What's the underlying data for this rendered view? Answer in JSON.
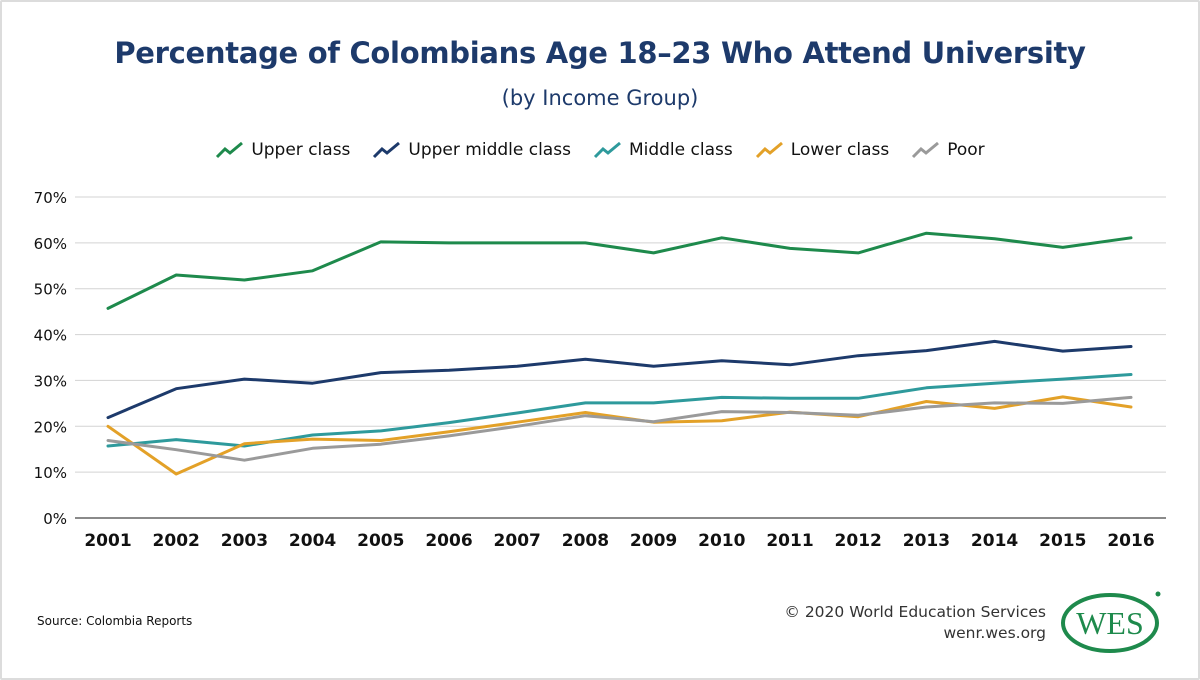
{
  "title": "Percentage of Colombians Age 18–23 Who Attend University",
  "subtitle": "(by Income Group)",
  "footer": {
    "source": "Source: Colombia Reports",
    "copyright": "© 2020 World Education Services",
    "website": "wenr.wes.org",
    "logo_text": "WES",
    "logo_color": "#1e8a4c"
  },
  "chart_data": {
    "type": "line",
    "title": "Percentage of Colombians Age 18–23 Who Attend University",
    "subtitle": "(by Income Group)",
    "xlabel": "",
    "ylabel": "",
    "x": [
      "2001",
      "2002",
      "2003",
      "2004",
      "2005",
      "2006",
      "2007",
      "2008",
      "2009",
      "2010",
      "2011",
      "2012",
      "2013",
      "2014",
      "2015",
      "2016"
    ],
    "ylim": [
      0,
      70
    ],
    "yticks": [
      0,
      10,
      20,
      30,
      40,
      50,
      60,
      70
    ],
    "ytick_labels": [
      "0%",
      "10%",
      "20%",
      "30%",
      "40%",
      "50%",
      "60%",
      "70%"
    ],
    "grid": true,
    "legend_position": "top-center",
    "series": [
      {
        "name": "Upper class",
        "color": "#1e8a4c",
        "values": [
          45.7,
          53.0,
          51.9,
          53.9,
          60.2,
          60.0,
          60.0,
          60.0,
          57.8,
          61.1,
          58.8,
          57.8,
          62.1,
          60.9,
          59.0,
          61.1
        ]
      },
      {
        "name": "Upper middle class",
        "color": "#1d3a6b",
        "values": [
          21.9,
          28.2,
          30.3,
          29.4,
          31.7,
          32.2,
          33.1,
          34.6,
          33.1,
          34.3,
          33.4,
          35.4,
          36.5,
          38.5,
          36.4,
          37.4
        ]
      },
      {
        "name": "Middle class",
        "color": "#2e9a9c",
        "values": [
          15.7,
          17.1,
          15.7,
          18.1,
          19.0,
          20.8,
          22.9,
          25.1,
          25.1,
          26.3,
          26.1,
          26.1,
          28.4,
          29.4,
          30.3,
          31.3
        ]
      },
      {
        "name": "Lower class",
        "color": "#e3a128",
        "values": [
          20.0,
          9.6,
          16.2,
          17.2,
          16.9,
          18.8,
          20.9,
          23.0,
          20.9,
          21.2,
          23.1,
          22.1,
          25.4,
          23.9,
          26.4,
          24.2
        ]
      },
      {
        "name": "Poor",
        "color": "#9a9a9a",
        "values": [
          16.9,
          14.9,
          12.6,
          15.2,
          16.1,
          17.9,
          20.0,
          22.3,
          21.0,
          23.2,
          23.0,
          22.4,
          24.2,
          25.1,
          25.0,
          26.3
        ]
      }
    ]
  }
}
